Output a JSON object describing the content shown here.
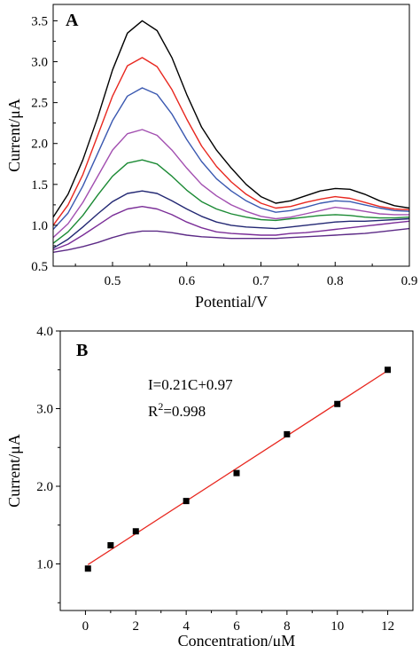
{
  "chart_data": [
    {
      "type": "line",
      "panel_label": "A",
      "xlabel": "Potential/V",
      "ylabel": "Current/μA",
      "xlim": [
        0.42,
        0.9
      ],
      "ylim": [
        0.5,
        3.7
      ],
      "xticks": [
        0.5,
        0.6,
        0.7,
        0.8,
        0.9
      ],
      "xtick_labels": [
        "0.5",
        "0.6",
        "0.7",
        "0.8",
        "0.9"
      ],
      "yticks": [
        0.5,
        1.0,
        1.5,
        2.0,
        2.5,
        3.0,
        3.5
      ],
      "ytick_labels": [
        "0.5",
        "1.0",
        "1.5",
        "2.0",
        "2.5",
        "3.0",
        "3.5"
      ],
      "grid": false,
      "series": [
        {
          "color": "#000000",
          "x": [
            0.42,
            0.44,
            0.46,
            0.48,
            0.5,
            0.52,
            0.54,
            0.56,
            0.58,
            0.6,
            0.62,
            0.64,
            0.66,
            0.68,
            0.7,
            0.72,
            0.74,
            0.76,
            0.78,
            0.8,
            0.82,
            0.84,
            0.86,
            0.88,
            0.9
          ],
          "y": [
            1.1,
            1.38,
            1.8,
            2.32,
            2.9,
            3.35,
            3.5,
            3.38,
            3.05,
            2.6,
            2.2,
            1.92,
            1.7,
            1.5,
            1.35,
            1.27,
            1.3,
            1.36,
            1.42,
            1.45,
            1.44,
            1.38,
            1.3,
            1.24,
            1.21
          ]
        },
        {
          "color": "#e8271f",
          "x": [
            0.42,
            0.44,
            0.46,
            0.48,
            0.5,
            0.52,
            0.54,
            0.56,
            0.58,
            0.6,
            0.62,
            0.64,
            0.66,
            0.68,
            0.7,
            0.72,
            0.74,
            0.76,
            0.78,
            0.8,
            0.82,
            0.84,
            0.86,
            0.88,
            0.9
          ],
          "y": [
            1.0,
            1.25,
            1.62,
            2.1,
            2.58,
            2.95,
            3.05,
            2.94,
            2.66,
            2.3,
            1.97,
            1.72,
            1.53,
            1.38,
            1.27,
            1.21,
            1.23,
            1.28,
            1.32,
            1.35,
            1.33,
            1.28,
            1.23,
            1.2,
            1.19
          ]
        },
        {
          "color": "#3a58b0",
          "x": [
            0.42,
            0.44,
            0.46,
            0.48,
            0.5,
            0.52,
            0.54,
            0.56,
            0.58,
            0.6,
            0.62,
            0.64,
            0.66,
            0.68,
            0.7,
            0.72,
            0.74,
            0.76,
            0.78,
            0.8,
            0.82,
            0.84,
            0.86,
            0.88,
            0.9
          ],
          "y": [
            0.95,
            1.15,
            1.48,
            1.88,
            2.28,
            2.58,
            2.68,
            2.6,
            2.36,
            2.05,
            1.78,
            1.57,
            1.42,
            1.3,
            1.21,
            1.16,
            1.18,
            1.22,
            1.27,
            1.3,
            1.29,
            1.25,
            1.21,
            1.18,
            1.17
          ]
        },
        {
          "color": "#a24fb0",
          "x": [
            0.42,
            0.44,
            0.46,
            0.48,
            0.5,
            0.52,
            0.54,
            0.56,
            0.58,
            0.6,
            0.62,
            0.64,
            0.66,
            0.68,
            0.7,
            0.72,
            0.74,
            0.76,
            0.78,
            0.8,
            0.82,
            0.84,
            0.86,
            0.88,
            0.9
          ],
          "y": [
            0.85,
            1.02,
            1.28,
            1.6,
            1.92,
            2.12,
            2.17,
            2.1,
            1.92,
            1.7,
            1.5,
            1.36,
            1.25,
            1.17,
            1.11,
            1.08,
            1.1,
            1.14,
            1.18,
            1.22,
            1.2,
            1.17,
            1.14,
            1.13,
            1.13
          ]
        },
        {
          "color": "#1b8a34",
          "x": [
            0.42,
            0.44,
            0.46,
            0.48,
            0.5,
            0.52,
            0.54,
            0.56,
            0.58,
            0.6,
            0.62,
            0.64,
            0.66,
            0.68,
            0.7,
            0.72,
            0.74,
            0.76,
            0.78,
            0.8,
            0.82,
            0.84,
            0.86,
            0.88,
            0.9
          ],
          "y": [
            0.78,
            0.92,
            1.12,
            1.37,
            1.6,
            1.76,
            1.8,
            1.75,
            1.6,
            1.43,
            1.29,
            1.2,
            1.14,
            1.1,
            1.07,
            1.06,
            1.08,
            1.1,
            1.12,
            1.13,
            1.12,
            1.1,
            1.09,
            1.09,
            1.1
          ]
        },
        {
          "color": "#232873",
          "x": [
            0.42,
            0.44,
            0.46,
            0.48,
            0.5,
            0.52,
            0.54,
            0.56,
            0.58,
            0.6,
            0.62,
            0.64,
            0.66,
            0.68,
            0.7,
            0.72,
            0.74,
            0.76,
            0.78,
            0.8,
            0.82,
            0.84,
            0.86,
            0.88,
            0.9
          ],
          "y": [
            0.72,
            0.83,
            0.98,
            1.14,
            1.29,
            1.39,
            1.42,
            1.39,
            1.3,
            1.2,
            1.11,
            1.04,
            1.0,
            0.98,
            0.97,
            0.96,
            0.98,
            1.0,
            1.02,
            1.04,
            1.05,
            1.05,
            1.06,
            1.07,
            1.08
          ]
        },
        {
          "color": "#7a2d97",
          "x": [
            0.42,
            0.44,
            0.46,
            0.48,
            0.5,
            0.52,
            0.54,
            0.56,
            0.58,
            0.6,
            0.62,
            0.64,
            0.66,
            0.68,
            0.7,
            0.72,
            0.74,
            0.76,
            0.78,
            0.8,
            0.82,
            0.84,
            0.86,
            0.88,
            0.9
          ],
          "y": [
            0.7,
            0.77,
            0.88,
            1.0,
            1.12,
            1.2,
            1.23,
            1.2,
            1.13,
            1.04,
            0.97,
            0.92,
            0.9,
            0.89,
            0.88,
            0.88,
            0.9,
            0.91,
            0.93,
            0.95,
            0.97,
            0.99,
            1.01,
            1.03,
            1.05
          ]
        },
        {
          "color": "#5c2a86",
          "x": [
            0.42,
            0.44,
            0.46,
            0.48,
            0.5,
            0.52,
            0.54,
            0.56,
            0.58,
            0.6,
            0.62,
            0.64,
            0.66,
            0.68,
            0.7,
            0.72,
            0.74,
            0.76,
            0.78,
            0.8,
            0.82,
            0.84,
            0.86,
            0.88,
            0.9
          ],
          "y": [
            0.67,
            0.7,
            0.74,
            0.79,
            0.85,
            0.9,
            0.93,
            0.93,
            0.91,
            0.88,
            0.86,
            0.85,
            0.84,
            0.84,
            0.84,
            0.84,
            0.85,
            0.86,
            0.87,
            0.88,
            0.89,
            0.9,
            0.92,
            0.94,
            0.96
          ]
        }
      ]
    },
    {
      "type": "scatter",
      "panel_label": "B",
      "xlabel": "Concentration/μM",
      "ylabel": "Current/μA",
      "xlim": [
        -1,
        13
      ],
      "ylim": [
        0.4,
        4.0
      ],
      "xticks": [
        0,
        2,
        4,
        6,
        8,
        10,
        12
      ],
      "xtick_labels": [
        "0",
        "2",
        "4",
        "6",
        "8",
        "10",
        "12"
      ],
      "yticks": [
        1.0,
        2.0,
        3.0,
        4.0
      ],
      "ytick_labels": [
        "1.0",
        "2.0",
        "3.0",
        "4.0"
      ],
      "grid": false,
      "annotations": {
        "equation": "I=0.21C+0.97",
        "r2_prefix": "R",
        "r2_sup": "2",
        "r2_value": "=0.998"
      },
      "points": {
        "color": "#000000",
        "x": [
          0.1,
          1,
          2,
          4,
          6,
          8,
          10,
          12
        ],
        "y": [
          0.94,
          1.24,
          1.42,
          1.81,
          2.17,
          2.67,
          3.06,
          3.5
        ]
      },
      "fit_line": {
        "color": "#e8271f",
        "slope": 0.21,
        "intercept": 0.97,
        "x_range": [
          0.1,
          12
        ]
      }
    }
  ]
}
